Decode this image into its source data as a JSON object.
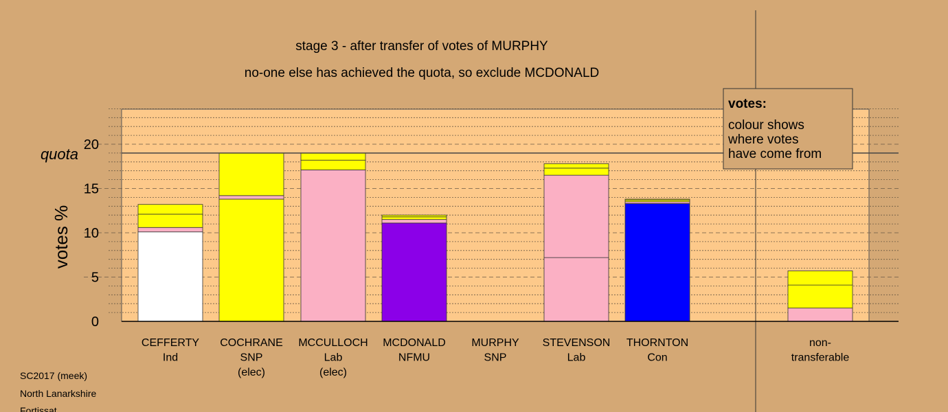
{
  "colors": {
    "background": "#d4a875",
    "plot_area": "#fdc98a",
    "white": "#ffffff",
    "yellow": "#ffff00",
    "pink": "#fbb0c4",
    "purple": "#8b00e8",
    "blue": "#0000ff"
  },
  "chart_data": {
    "type": "bar",
    "stacked": true,
    "title": "stage 3 - after transfer of votes of MURPHY",
    "subtitle": "no-one else has achieved the quota, so exclude MCDONALD",
    "ylabel": "votes %",
    "ylim": [
      0,
      24
    ],
    "yticks": [
      "0",
      "5",
      "10",
      "15",
      "20"
    ],
    "quota": 19.0,
    "quota_label": "quota",
    "grid": true,
    "categories": [
      {
        "name": "CEFFERTY",
        "party": "Ind",
        "status": ""
      },
      {
        "name": "COCHRANE",
        "party": "SNP",
        "status": "(elec)"
      },
      {
        "name": "MCCULLOCH",
        "party": "Lab",
        "status": "(elec)"
      },
      {
        "name": "MCDONALD",
        "party": "NFMU",
        "status": ""
      },
      {
        "name": "MURPHY",
        "party": "SNP",
        "status": ""
      },
      {
        "name": "STEVENSON",
        "party": "Lab",
        "status": ""
      },
      {
        "name": "THORNTON",
        "party": "Con",
        "status": ""
      },
      {
        "name": "non-",
        "party": "transferable",
        "status": ""
      }
    ],
    "segments": [
      [
        {
          "value": 10.1,
          "color": "white"
        },
        {
          "value": 0.5,
          "color": "pink"
        },
        {
          "value": 1.5,
          "color": "yellow"
        },
        {
          "value": 1.1,
          "color": "yellow"
        }
      ],
      [
        {
          "value": 13.8,
          "color": "yellow"
        },
        {
          "value": 0.4,
          "color": "pink"
        },
        {
          "value": 4.8,
          "color": "yellow"
        }
      ],
      [
        {
          "value": 17.1,
          "color": "pink"
        },
        {
          "value": 1.1,
          "color": "yellow"
        },
        {
          "value": 0.8,
          "color": "yellow"
        }
      ],
      [
        {
          "value": 11.1,
          "color": "purple"
        },
        {
          "value": 0.4,
          "color": "pink"
        },
        {
          "value": 0.3,
          "color": "yellow"
        },
        {
          "value": 0.2,
          "color": "yellow"
        }
      ],
      [],
      [
        {
          "value": 7.2,
          "color": "pink"
        },
        {
          "value": 9.3,
          "color": "pink"
        },
        {
          "value": 0.8,
          "color": "yellow"
        },
        {
          "value": 0.5,
          "color": "yellow"
        }
      ],
      [
        {
          "value": 13.3,
          "color": "blue"
        },
        {
          "value": 0.2,
          "color": "pink"
        },
        {
          "value": 0.2,
          "color": "yellow"
        },
        {
          "value": 0.1,
          "color": "yellow"
        }
      ],
      [
        {
          "value": 1.5,
          "color": "pink"
        },
        {
          "value": 2.6,
          "color": "yellow"
        },
        {
          "value": 1.6,
          "color": "yellow"
        }
      ]
    ]
  },
  "legend": {
    "heading": "votes:",
    "lines": [
      "colour shows",
      "where votes",
      "have come from"
    ]
  },
  "footer": {
    "lines": [
      "SC2017 (meek)",
      "North Lanarkshire",
      "Fortissat"
    ]
  }
}
